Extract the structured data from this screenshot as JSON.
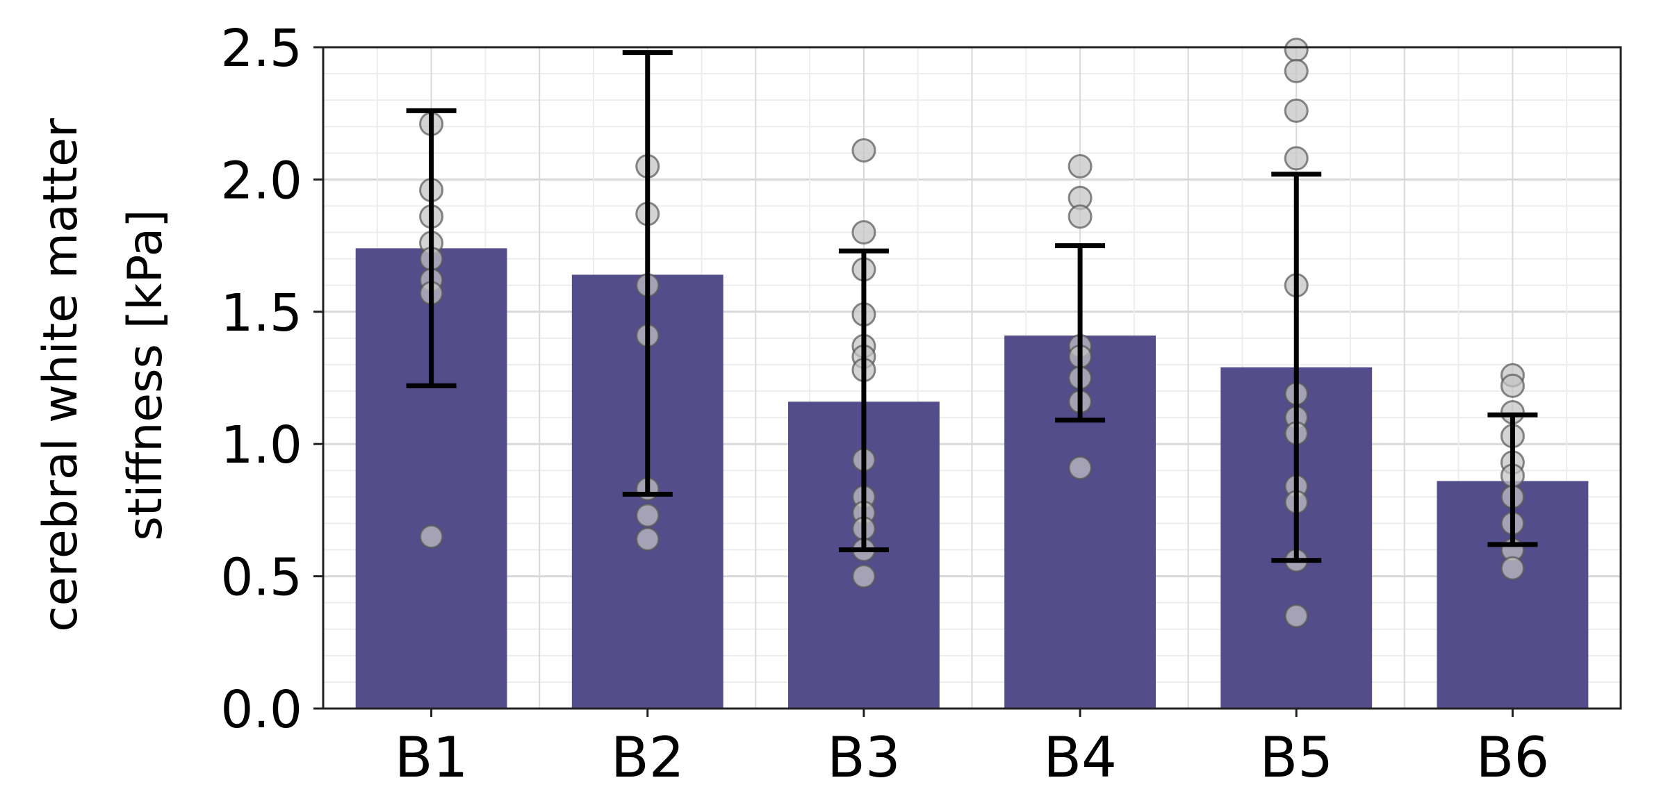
{
  "chart_data": {
    "type": "bar",
    "categories": [
      "B1",
      "B2",
      "B3",
      "B4",
      "B5",
      "B6"
    ],
    "values": [
      1.74,
      1.64,
      1.16,
      1.41,
      1.29,
      0.86
    ],
    "error_low": [
      1.22,
      0.81,
      0.6,
      1.09,
      0.56,
      0.62
    ],
    "error_high": [
      2.26,
      2.48,
      1.73,
      1.75,
      2.02,
      1.11
    ],
    "points": [
      [
        2.21,
        1.96,
        1.86,
        1.76,
        1.7,
        1.62,
        1.57,
        0.65
      ],
      [
        2.05,
        1.87,
        1.6,
        1.41,
        0.83,
        0.73,
        0.64
      ],
      [
        2.11,
        1.8,
        1.66,
        1.49,
        1.37,
        1.33,
        1.28,
        0.94,
        0.8,
        0.74,
        0.68,
        0.6,
        0.5
      ],
      [
        2.05,
        1.93,
        1.86,
        1.37,
        1.33,
        1.25,
        1.16,
        0.91
      ],
      [
        2.49,
        2.41,
        2.26,
        2.08,
        1.6,
        1.19,
        1.1,
        1.04,
        0.84,
        0.78,
        0.56,
        0.35
      ],
      [
        1.26,
        1.22,
        1.12,
        1.03,
        0.93,
        0.88,
        0.8,
        0.7,
        0.6,
        0.53
      ]
    ],
    "title": "",
    "xlabel": "",
    "ylabel_lines": [
      "cerebral white matter",
      "stiffness [kPa]"
    ],
    "ylim": [
      0,
      2.5
    ],
    "yticks": [
      "0.0",
      "0.5",
      "1.0",
      "1.5",
      "2.0",
      "2.5"
    ],
    "grid": true,
    "colors": {
      "bar": "#534d8c",
      "point_fill": "#c4c4c4",
      "point_stroke": "#555555",
      "error_bar": "#000000",
      "grid_major": "#d9d9d9",
      "grid_minor": "#ededed"
    }
  }
}
